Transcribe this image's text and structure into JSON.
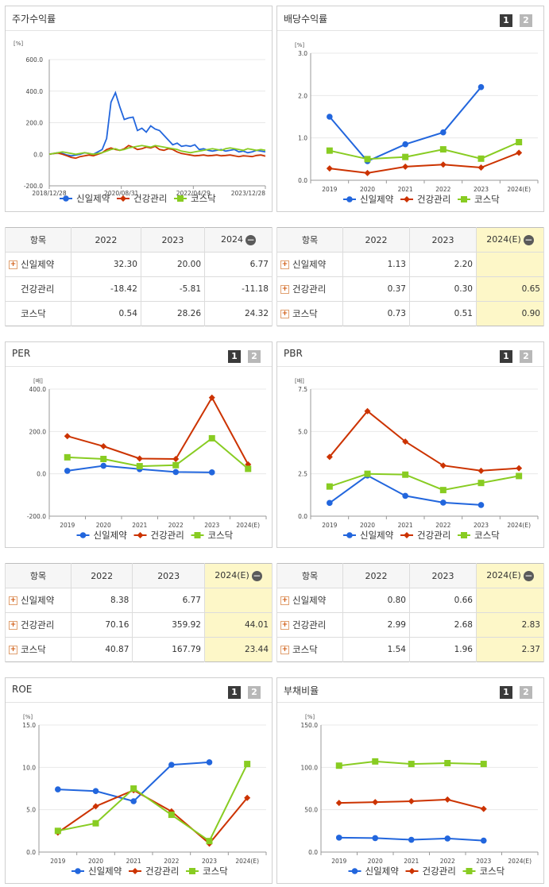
{
  "colors": {
    "s1": "#2266dd",
    "s2": "#cc3300",
    "s3": "#88cc22"
  },
  "legend": [
    "신일제약",
    "건강관리",
    "코스닥"
  ],
  "panels": {
    "stock": {
      "title": "주가수익률"
    },
    "dividend": {
      "title": "배당수익률",
      "pages": [
        "1",
        "2"
      ]
    },
    "per": {
      "title": "PER",
      "pages": [
        "1",
        "2"
      ]
    },
    "pbr": {
      "title": "PBR",
      "pages": [
        "1",
        "2"
      ]
    },
    "roe": {
      "title": "ROE",
      "pages": [
        "1",
        "2"
      ]
    },
    "debt": {
      "title": "부채비율",
      "pages": [
        "1",
        "2"
      ]
    }
  },
  "tables": {
    "stock": {
      "headers": [
        "항목",
        "2022",
        "2023",
        "2024"
      ],
      "rows": [
        {
          "name": "신일제약",
          "plus": true,
          "v": [
            "32.30",
            "20.00",
            "6.77"
          ]
        },
        {
          "name": "건강관리",
          "plus": false,
          "v": [
            "-18.42",
            "-5.81",
            "-11.18"
          ]
        },
        {
          "name": "코스닥",
          "plus": false,
          "v": [
            "0.54",
            "28.26",
            "24.32"
          ]
        }
      ]
    },
    "dividend": {
      "headers": [
        "항목",
        "2022",
        "2023",
        "2024(E)"
      ],
      "rows": [
        {
          "name": "신일제약",
          "plus": true,
          "v": [
            "1.13",
            "2.20",
            ""
          ]
        },
        {
          "name": "건강관리",
          "plus": true,
          "v": [
            "0.37",
            "0.30",
            "0.65"
          ]
        },
        {
          "name": "코스닥",
          "plus": true,
          "v": [
            "0.73",
            "0.51",
            "0.90"
          ]
        }
      ]
    },
    "per": {
      "headers": [
        "항목",
        "2022",
        "2023",
        "2024(E)"
      ],
      "rows": [
        {
          "name": "신일제약",
          "plus": true,
          "v": [
            "8.38",
            "6.77",
            ""
          ]
        },
        {
          "name": "건강관리",
          "plus": true,
          "v": [
            "70.16",
            "359.92",
            "44.01"
          ]
        },
        {
          "name": "코스닥",
          "plus": true,
          "v": [
            "40.87",
            "167.79",
            "23.44"
          ]
        }
      ]
    },
    "pbr": {
      "headers": [
        "항목",
        "2022",
        "2023",
        "2024(E)"
      ],
      "rows": [
        {
          "name": "신일제약",
          "plus": true,
          "v": [
            "0.80",
            "0.66",
            ""
          ]
        },
        {
          "name": "건강관리",
          "plus": true,
          "v": [
            "2.99",
            "2.68",
            "2.83"
          ]
        },
        {
          "name": "코스닥",
          "plus": true,
          "v": [
            "1.54",
            "1.96",
            "2.37"
          ]
        }
      ]
    }
  },
  "chart_data": [
    {
      "id": "stock",
      "type": "line",
      "unit": "[%]",
      "ylim": [
        -200,
        600
      ],
      "yticks": [
        "600.0",
        "400.0",
        "200.0",
        "0.0",
        "-200.0"
      ],
      "xticks": [
        "2018/12/28",
        "2020/08/31",
        "2022/04/29",
        "2023/12/28"
      ],
      "x_range": [
        "2018-12-28",
        "2024-06-28"
      ],
      "series": [
        {
          "name": "신일제약",
          "values": [
            0,
            5,
            10,
            5,
            -5,
            -10,
            -5,
            0,
            10,
            5,
            0,
            15,
            30,
            100,
            330,
            390,
            300,
            220,
            230,
            235,
            150,
            165,
            140,
            180,
            160,
            150,
            120,
            90,
            60,
            70,
            50,
            55,
            50,
            60,
            30,
            35,
            25,
            20,
            25,
            30,
            20,
            25,
            30,
            15,
            20,
            10,
            15,
            25,
            20,
            15
          ]
        },
        {
          "name": "건강관리",
          "values": [
            0,
            5,
            8,
            0,
            -10,
            -20,
            -25,
            -15,
            -10,
            -5,
            -10,
            0,
            10,
            30,
            40,
            30,
            25,
            35,
            55,
            45,
            30,
            35,
            45,
            40,
            50,
            30,
            25,
            35,
            30,
            15,
            5,
            0,
            -5,
            -10,
            -8,
            -5,
            -10,
            -8,
            -5,
            -10,
            -8,
            -5,
            -10,
            -15,
            -10,
            -12,
            -15,
            -8,
            -5,
            -12
          ]
        },
        {
          "name": "코스닥",
          "values": [
            0,
            5,
            10,
            15,
            10,
            5,
            0,
            5,
            10,
            5,
            0,
            5,
            10,
            20,
            30,
            35,
            25,
            30,
            40,
            45,
            50,
            55,
            50,
            45,
            55,
            50,
            45,
            40,
            35,
            30,
            20,
            15,
            10,
            15,
            20,
            25,
            30,
            35,
            30,
            25,
            35,
            40,
            35,
            30,
            25,
            35,
            30,
            25,
            30,
            25
          ]
        }
      ]
    },
    {
      "id": "dividend",
      "type": "line",
      "unit": "[%]",
      "ylim": [
        0,
        3
      ],
      "yticks": [
        "3.0",
        "2.0",
        "1.0",
        "0.0"
      ],
      "categories": [
        "2019",
        "2020",
        "2021",
        "2022",
        "2023",
        "2024(E)"
      ],
      "series": [
        {
          "name": "신일제약",
          "values": [
            1.5,
            0.45,
            0.85,
            1.13,
            2.2,
            null
          ]
        },
        {
          "name": "건강관리",
          "values": [
            0.28,
            0.17,
            0.32,
            0.37,
            0.3,
            0.65
          ]
        },
        {
          "name": "코스닥",
          "values": [
            0.7,
            0.5,
            0.55,
            0.73,
            0.51,
            0.9
          ]
        }
      ]
    },
    {
      "id": "per",
      "type": "line",
      "unit": "[배]",
      "ylim": [
        -200,
        400
      ],
      "yticks": [
        "400.0",
        "200.0",
        "0.0",
        "-200.0"
      ],
      "categories": [
        "2019",
        "2020",
        "2021",
        "2022",
        "2023",
        "2024(E)"
      ],
      "series": [
        {
          "name": "신일제약",
          "values": [
            14,
            38,
            22,
            8.38,
            6.77,
            null
          ]
        },
        {
          "name": "건강관리",
          "values": [
            178,
            130,
            72,
            70.16,
            359.92,
            44.01
          ]
        },
        {
          "name": "코스닥",
          "values": [
            78,
            70,
            36,
            40.87,
            167.79,
            23.44
          ]
        }
      ]
    },
    {
      "id": "pbr",
      "type": "line",
      "unit": "[배]",
      "ylim": [
        0,
        7.5
      ],
      "yticks": [
        "7.5",
        "5.0",
        "2.5",
        "0.0"
      ],
      "categories": [
        "2019",
        "2020",
        "2021",
        "2022",
        "2023",
        "2024(E)"
      ],
      "series": [
        {
          "name": "신일제약",
          "values": [
            0.78,
            2.4,
            1.2,
            0.8,
            0.66,
            null
          ]
        },
        {
          "name": "건강관리",
          "values": [
            3.5,
            6.2,
            4.4,
            2.99,
            2.68,
            2.83
          ]
        },
        {
          "name": "코스닥",
          "values": [
            1.75,
            2.5,
            2.45,
            1.54,
            1.96,
            2.37
          ]
        }
      ]
    },
    {
      "id": "roe",
      "type": "line",
      "unit": "[%]",
      "ylim": [
        0,
        15
      ],
      "yticks": [
        "15.0",
        "10.0",
        "5.0",
        "0.0"
      ],
      "categories": [
        "2019",
        "2020",
        "2021",
        "2022",
        "2023",
        "2024(E)"
      ],
      "series": [
        {
          "name": "신일제약",
          "values": [
            7.4,
            7.2,
            6.0,
            10.3,
            10.6,
            null
          ]
        },
        {
          "name": "건강관리",
          "values": [
            2.3,
            5.4,
            7.3,
            4.8,
            1.0,
            6.4
          ]
        },
        {
          "name": "코스닥",
          "values": [
            2.5,
            3.4,
            7.5,
            4.4,
            1.3,
            10.4
          ]
        }
      ]
    },
    {
      "id": "debt",
      "type": "line",
      "unit": "[%]",
      "ylim": [
        0,
        150
      ],
      "yticks": [
        "150.0",
        "100.0",
        "50.0",
        "0.0"
      ],
      "categories": [
        "2019",
        "2020",
        "2021",
        "2022",
        "2023",
        "2024(E)"
      ],
      "series": [
        {
          "name": "신일제약",
          "values": [
            17,
            16.5,
            14.5,
            16,
            13.5,
            null
          ]
        },
        {
          "name": "건강관리",
          "values": [
            58,
            59,
            60,
            62,
            51,
            null
          ]
        },
        {
          "name": "코스닥",
          "values": [
            102,
            107,
            104,
            105,
            104,
            null
          ]
        }
      ]
    }
  ]
}
